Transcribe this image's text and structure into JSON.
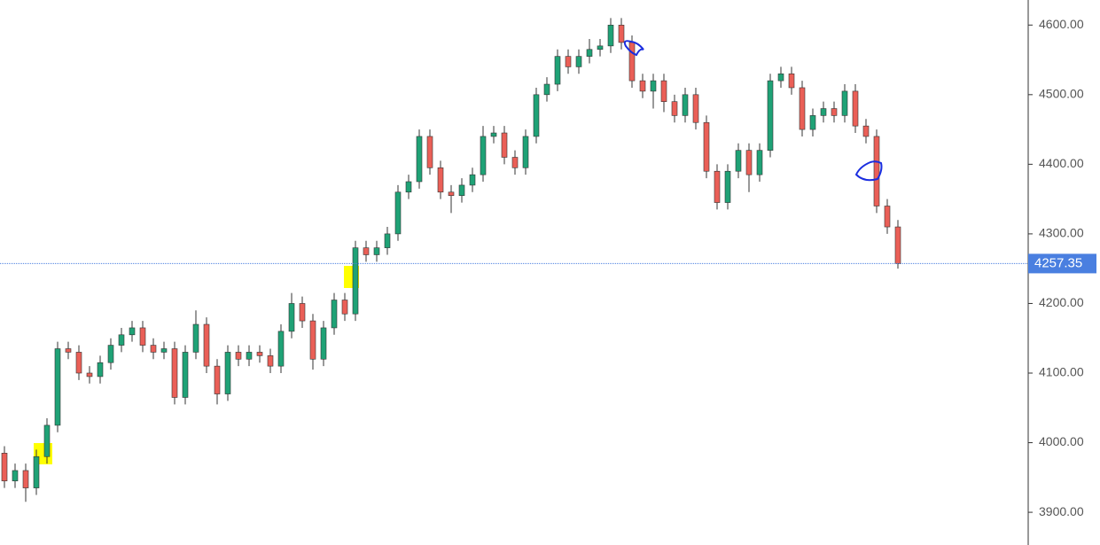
{
  "chart_data": {
    "type": "candlestick",
    "up_color": "#1fa276",
    "down_color": "#ea5f57",
    "open": [
      3985,
      3945,
      3960,
      3935,
      3980,
      4025,
      4135,
      4130,
      4100,
      4095,
      4115,
      4140,
      4155,
      4165,
      4140,
      4130,
      4135,
      4065,
      4130,
      4170,
      4110,
      4070,
      4130,
      4120,
      4130,
      4125,
      4110,
      4160,
      4200,
      4175,
      4120,
      4165,
      4205,
      4185,
      4280,
      4270,
      4280,
      4300,
      4360,
      4375,
      4440,
      4395,
      4360,
      4355,
      4370,
      4385,
      4440,
      4445,
      4410,
      4395,
      4440,
      4500,
      4515,
      4555,
      4540,
      4555,
      4565,
      4570,
      4600,
      4575,
      4520,
      4505,
      4520,
      4490,
      4470,
      4500,
      4460,
      4390,
      4345,
      4390,
      4420,
      4385,
      4420,
      4520,
      4530,
      4510,
      4450,
      4470,
      4480,
      4470,
      4505,
      4455,
      4440,
      4340,
      4310
    ],
    "high": [
      3995,
      3970,
      3970,
      3990,
      4035,
      4145,
      4145,
      4140,
      4110,
      4125,
      4150,
      4165,
      4175,
      4175,
      4150,
      4145,
      4145,
      4140,
      4190,
      4180,
      4120,
      4140,
      4140,
      4140,
      4140,
      4135,
      4170,
      4215,
      4210,
      4185,
      4175,
      4215,
      4215,
      4290,
      4290,
      4290,
      4310,
      4370,
      4385,
      4450,
      4450,
      4405,
      4370,
      4380,
      4395,
      4455,
      4455,
      4455,
      4420,
      4450,
      4510,
      4525,
      4565,
      4565,
      4565,
      4580,
      4580,
      4610,
      4610,
      4585,
      4530,
      4530,
      4530,
      4500,
      4510,
      4510,
      4470,
      4400,
      4400,
      4430,
      4430,
      4430,
      4530,
      4540,
      4540,
      4520,
      4480,
      4490,
      4490,
      4515,
      4515,
      4465,
      4450,
      4350,
      4320
    ],
    "low": [
      3935,
      3935,
      3915,
      3925,
      3970,
      4015,
      4120,
      4090,
      4085,
      4085,
      4105,
      4130,
      4145,
      4130,
      4120,
      4120,
      4055,
      4055,
      4120,
      4100,
      4055,
      4060,
      4110,
      4110,
      4115,
      4100,
      4100,
      4150,
      4165,
      4105,
      4110,
      4155,
      4175,
      4175,
      4260,
      4260,
      4270,
      4290,
      4350,
      4365,
      4385,
      4350,
      4330,
      4345,
      4360,
      4375,
      4430,
      4400,
      4385,
      4385,
      4430,
      4490,
      4505,
      4530,
      4530,
      4545,
      4555,
      4560,
      4565,
      4510,
      4495,
      4480,
      4475,
      4460,
      4460,
      4450,
      4380,
      4335,
      4335,
      4380,
      4360,
      4375,
      4410,
      4510,
      4500,
      4440,
      4440,
      4460,
      4460,
      4460,
      4445,
      4430,
      4330,
      4300,
      4250
    ],
    "close": [
      3945,
      3960,
      3935,
      3980,
      4025,
      4135,
      4130,
      4100,
      4095,
      4115,
      4140,
      4155,
      4165,
      4140,
      4130,
      4135,
      4065,
      4130,
      4170,
      4110,
      4070,
      4130,
      4120,
      4130,
      4125,
      4110,
      4160,
      4200,
      4175,
      4120,
      4165,
      4205,
      4185,
      4280,
      4270,
      4280,
      4300,
      4360,
      4375,
      4440,
      4395,
      4360,
      4355,
      4370,
      4385,
      4440,
      4445,
      4410,
      4395,
      4440,
      4500,
      4515,
      4555,
      4540,
      4555,
      4565,
      4570,
      4600,
      4575,
      4520,
      4505,
      4520,
      4490,
      4470,
      4500,
      4460,
      4390,
      4345,
      4390,
      4420,
      4385,
      4420,
      4520,
      4530,
      4510,
      4450,
      4470,
      4480,
      4470,
      4505,
      4455,
      4440,
      4340,
      4310,
      4257.35
    ],
    "ylim": [
      3853,
      4636
    ],
    "yticks": [
      {
        "value": 3900,
        "label": "3900.00"
      },
      {
        "value": 4000,
        "label": "4000.00"
      },
      {
        "value": 4100,
        "label": "4100.00"
      },
      {
        "value": 4200,
        "label": "4200.00"
      },
      {
        "value": 4300,
        "label": "4300.00"
      },
      {
        "value": 4400,
        "label": "4400.00"
      },
      {
        "value": 4500,
        "label": "4500.00"
      },
      {
        "value": 4600,
        "label": "4600.00"
      }
    ]
  }
}
